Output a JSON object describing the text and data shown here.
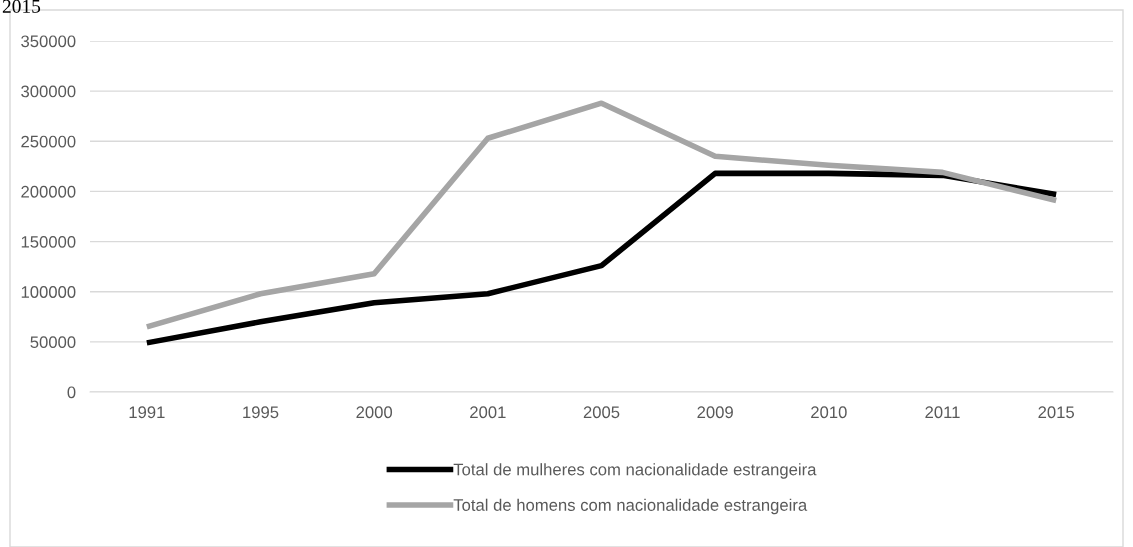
{
  "chart_data": {
    "type": "line",
    "categories": [
      "1991",
      "1995",
      "2000",
      "2001",
      "2005",
      "2009",
      "2010",
      "2011",
      "2015"
    ],
    "series": [
      {
        "name": "Total de mulheres com nacionalidade estrangeira",
        "color": "#000000",
        "values": [
          49000,
          70000,
          89000,
          98000,
          126000,
          218000,
          218000,
          216000,
          197000
        ]
      },
      {
        "name": "Total de homens com nacionalidade estrangeira",
        "color": "#a5a5a5",
        "values": [
          65000,
          98000,
          118000,
          253000,
          288000,
          235000,
          226000,
          219000,
          191000
        ]
      }
    ],
    "ylim": [
      0,
      350000
    ],
    "yticks": [
      0,
      50000,
      100000,
      150000,
      200000,
      250000,
      300000,
      350000
    ],
    "grid": "y",
    "legend": "bottom",
    "marker": "none",
    "line_style": "solid",
    "annotations": [
      "2015"
    ]
  }
}
